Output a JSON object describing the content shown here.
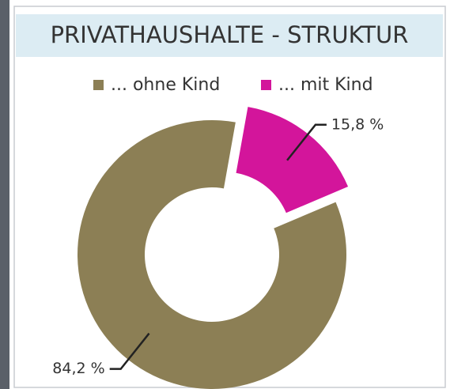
{
  "chart_data": {
    "type": "pie",
    "title": "PRIVATHAUSHALTE - STRUKTUR",
    "categories": [
      "... ohne Kind",
      "... mit Kind"
    ],
    "values": [
      84.2,
      15.8
    ],
    "value_labels": [
      "84,2 %",
      "15,8 %"
    ],
    "colors": [
      "#8c7f55",
      "#d3159b"
    ]
  }
}
